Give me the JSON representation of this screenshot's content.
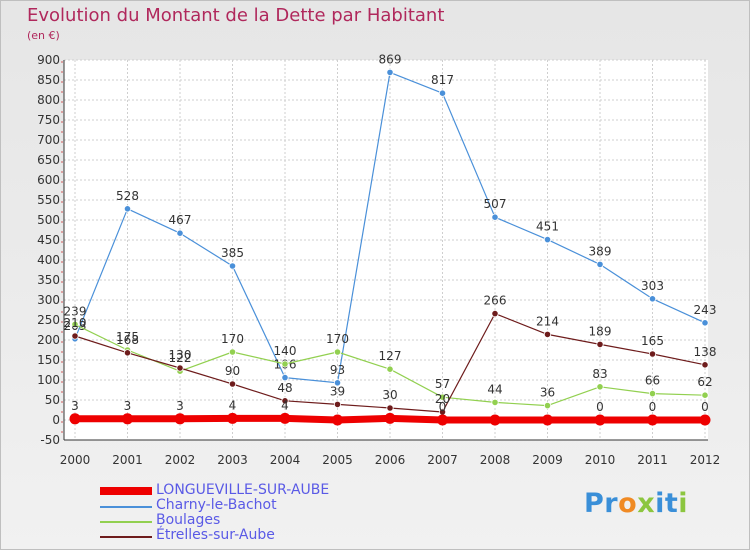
{
  "title": "Evolution du Montant de la Dette par Habitant",
  "subtitle": "(en €)",
  "logo": {
    "letters": [
      {
        "ch": "P",
        "color": "#3a8fd8"
      },
      {
        "ch": "r",
        "color": "#3a8fd8"
      },
      {
        "ch": "o",
        "color": "#f08a24"
      },
      {
        "ch": "x",
        "color": "#8cc63f"
      },
      {
        "ch": "i",
        "color": "#3a8fd8"
      },
      {
        "ch": "t",
        "color": "#3a8fd8"
      },
      {
        "ch": "i",
        "color": "#8cc63f"
      }
    ]
  },
  "chart_data": {
    "type": "line",
    "title": "Evolution du Montant de la Dette par Habitant",
    "subtitle": "(en €)",
    "xlabel": "",
    "ylabel": "",
    "x": [
      "2000",
      "2001",
      "2002",
      "2003",
      "2004",
      "2005",
      "2006",
      "2007",
      "2008",
      "2009",
      "2010",
      "2011",
      "2012"
    ],
    "ylim": [
      -50,
      900
    ],
    "yticks": [
      "900",
      "850",
      "800",
      "750",
      "700",
      "650",
      "600",
      "550",
      "500",
      "450",
      "400",
      "350",
      "300",
      "250",
      "200",
      "150",
      "100",
      "50",
      "0",
      "-50"
    ],
    "grid": true,
    "legend_position": "bottom-left",
    "series": [
      {
        "name": "Charny-le-Bachot",
        "color": "#4a90d9",
        "thick": false,
        "values": [
          203,
          528,
          467,
          385,
          106,
          93,
          869,
          817,
          507,
          451,
          389,
          303,
          243
        ],
        "labels": [
          "203",
          "528",
          "467",
          "385",
          "106",
          "93",
          "869",
          "817",
          "507",
          "451",
          "389",
          "303",
          "243"
        ]
      },
      {
        "name": "Boulages",
        "color": "#92d050",
        "thick": false,
        "values": [
          239,
          175,
          122,
          170,
          140,
          170,
          127,
          57,
          44,
          36,
          83,
          66,
          62
        ],
        "labels": [
          "239",
          "175",
          "122",
          "170",
          "140",
          "170",
          "127",
          "57",
          "44",
          "36",
          "83",
          "66",
          "62"
        ]
      },
      {
        "name": "Étrelles-sur-Aube",
        "color": "#6e1c1c",
        "thick": false,
        "values": [
          210,
          168,
          130,
          90,
          48,
          39,
          30,
          20,
          266,
          214,
          189,
          165,
          138
        ],
        "labels": [
          "210",
          "168",
          "130",
          "90",
          "48",
          "39",
          "30",
          "20",
          "266",
          "214",
          "189",
          "165",
          "138"
        ]
      },
      {
        "name": "LONGUEVILLE-SUR-AUBE",
        "color": "#ee0000",
        "thick": true,
        "values": [
          3,
          3,
          3,
          4,
          4,
          0,
          4,
          0,
          0,
          0,
          0,
          0,
          0
        ],
        "labels": [
          "3",
          "3",
          "3",
          "4",
          "4",
          "",
          "",
          "0",
          "",
          "",
          "0",
          "0",
          "0"
        ]
      }
    ],
    "legend_order": [
      "LONGUEVILLE-SUR-AUBE",
      "Charny-le-Bachot",
      "Boulages",
      "Étrelles-sur-Aube"
    ]
  }
}
